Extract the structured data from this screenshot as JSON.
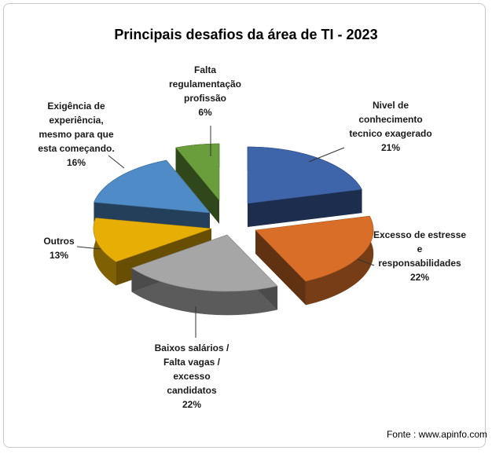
{
  "chart_data": {
    "type": "pie",
    "title": "Principais  desafios da área de TI - 2023",
    "slices": [
      {
        "label_lines": [
          "Nivel de",
          "conhecimento",
          "tecnico exagerado"
        ],
        "pct_label": "21%",
        "value": 21,
        "color": "#3E64AA"
      },
      {
        "label_lines": [
          "Excesso de estresse",
          "e",
          "responsabilidades"
        ],
        "pct_label": "22%",
        "value": 22,
        "color": "#D86E28"
      },
      {
        "label_lines": [
          "Baixos salários /",
          "Falta vagas /",
          "excesso",
          "candidatos"
        ],
        "pct_label": "22%",
        "value": 22,
        "color": "#A6A6A6"
      },
      {
        "label_lines": [
          "Outros"
        ],
        "pct_label": "13%",
        "value": 13,
        "color": "#E7AE06"
      },
      {
        "label_lines": [
          "Exigência de",
          "experiência,",
          "mesmo para que",
          "esta começando."
        ],
        "pct_label": "16%",
        "value": 16,
        "color": "#4F8BC6"
      },
      {
        "label_lines": [
          "Falta",
          "regulamentação",
          "profissão"
        ],
        "pct_label": "6%",
        "value": 6,
        "color": "#6A9E3C"
      }
    ],
    "source": "Fonte : www.apinfo.com"
  }
}
